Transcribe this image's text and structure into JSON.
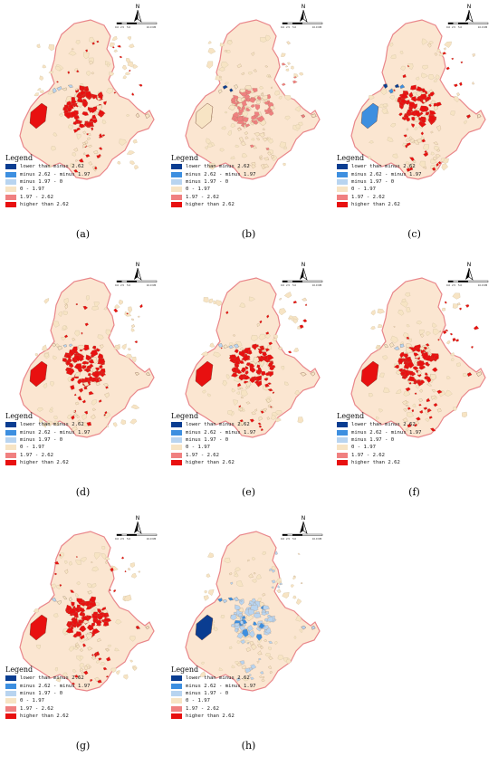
{
  "legend": {
    "title": "Legend",
    "items": [
      {
        "label": "lower than  minus 2.62",
        "color": "#0a3d91"
      },
      {
        "label": "minus 2.62 - minus 1.97",
        "color": "#3d8fe0"
      },
      {
        "label": "minus 1.97 - 0",
        "color": "#b8d4f0"
      },
      {
        "label": "0 - 1.97",
        "color": "#f7e4c4"
      },
      {
        "label": "1.97 - 2.62",
        "color": "#f08080"
      },
      {
        "label": "higher than 2.62",
        "color": "#e81010"
      }
    ]
  },
  "map": {
    "north_label": "N",
    "scale_labels": [
      "0.0",
      "2.5",
      "5.0",
      "10.0 KM"
    ],
    "boundary_color": "#e9868a",
    "base_fill_color": "#fbe6d1"
  },
  "panels": [
    {
      "caption": "(a)",
      "scheme": "hot"
    },
    {
      "caption": "(b)",
      "scheme": "pink"
    },
    {
      "caption": "(c)",
      "scheme": "hot-blue"
    },
    {
      "caption": "(d)",
      "scheme": "hot"
    },
    {
      "caption": "(e)",
      "scheme": "hot"
    },
    {
      "caption": "(f)",
      "scheme": "hot"
    },
    {
      "caption": "(g)",
      "scheme": "hot"
    },
    {
      "caption": "(h)",
      "scheme": "cold"
    }
  ]
}
